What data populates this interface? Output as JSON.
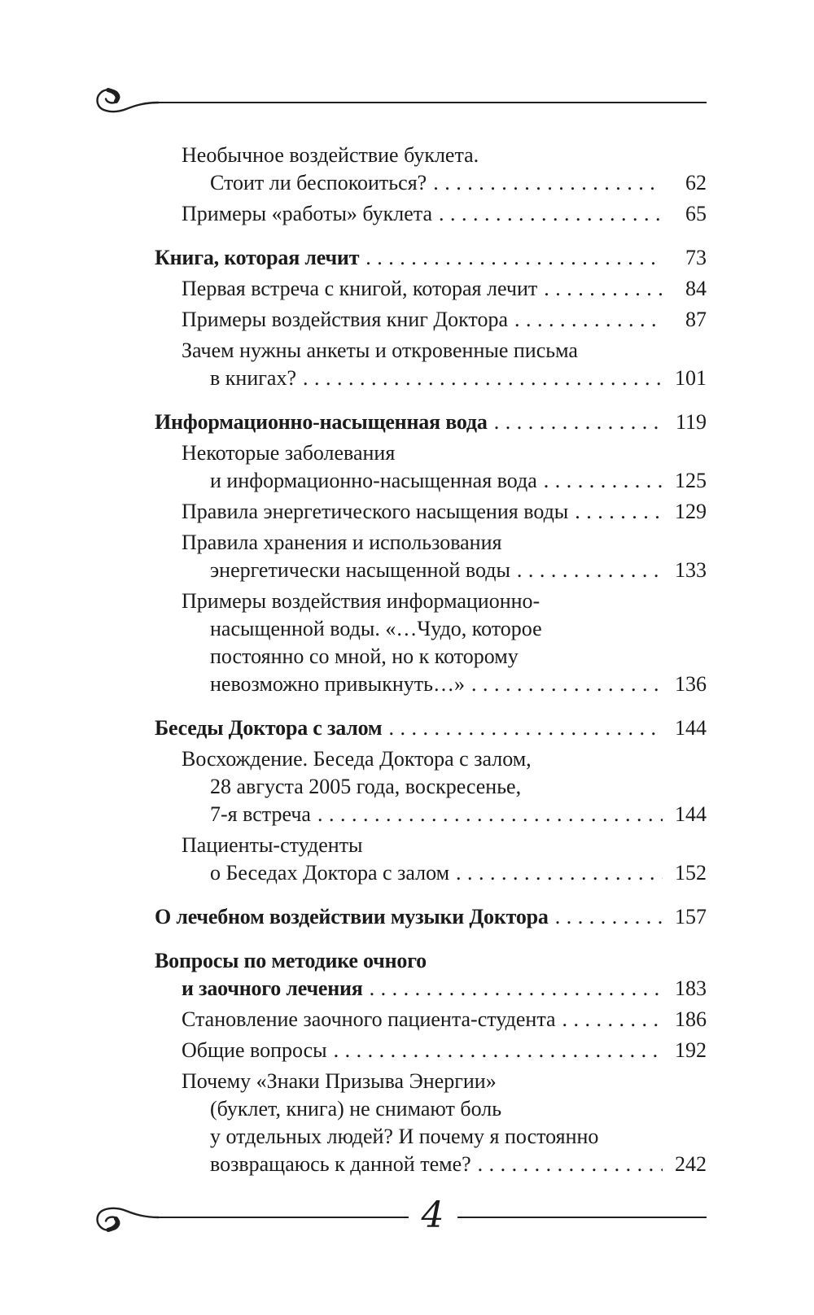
{
  "page": {
    "number": "4"
  },
  "icons": {
    "header_flourish": "swirl-rule-icon",
    "footer_flourish": "swirl-rule-icon"
  },
  "toc": {
    "entries": [
      {
        "bold": false,
        "gap": false,
        "indent": 1,
        "lines": [
          "Необычное воздействие буклета.",
          "Стоит ли беспокоиться?"
        ],
        "page": "62"
      },
      {
        "bold": false,
        "gap": false,
        "indent": 1,
        "lines": [
          "Примеры «работы» буклета"
        ],
        "page": "65"
      },
      {
        "bold": true,
        "gap": true,
        "indent": 0,
        "lines": [
          "Книга, которая лечит"
        ],
        "page": "73"
      },
      {
        "bold": false,
        "gap": false,
        "indent": 1,
        "lines": [
          "Первая встреча с книгой, которая лечит"
        ],
        "page": "84"
      },
      {
        "bold": false,
        "gap": false,
        "indent": 1,
        "lines": [
          "Примеры воздействия книг Доктора"
        ],
        "page": "87"
      },
      {
        "bold": false,
        "gap": false,
        "indent": 1,
        "lines": [
          "Зачем нужны анкеты и откровенные письма",
          "в книгах?"
        ],
        "page": "101"
      },
      {
        "bold": true,
        "gap": true,
        "indent": 0,
        "lines": [
          "Информационно-насыщенная вода"
        ],
        "page": "119"
      },
      {
        "bold": false,
        "gap": false,
        "indent": 1,
        "lines": [
          "Некоторые заболевания",
          "и информационно-насыщенная вода"
        ],
        "page": "125"
      },
      {
        "bold": false,
        "gap": false,
        "indent": 1,
        "lines": [
          "Правила энергетического насыщения воды"
        ],
        "page": "129"
      },
      {
        "bold": false,
        "gap": false,
        "indent": 1,
        "lines": [
          "Правила хранения и использования",
          "энергетически насыщенной воды"
        ],
        "page": "133"
      },
      {
        "bold": false,
        "gap": false,
        "indent": 1,
        "lines": [
          "Примеры воздействия информационно-",
          "насыщенной воды. «…Чудо, которое",
          "постоянно со мной, но к которому",
          "невозможно привыкнуть…»"
        ],
        "page": "136"
      },
      {
        "bold": true,
        "gap": true,
        "indent": 0,
        "lines": [
          "Беседы Доктора с залом"
        ],
        "page": "144"
      },
      {
        "bold": false,
        "gap": false,
        "indent": 1,
        "lines": [
          "Восхождение. Беседа Доктора с залом,",
          "28 августа 2005 года, воскресенье,",
          "7-я встреча"
        ],
        "page": "144"
      },
      {
        "bold": false,
        "gap": false,
        "indent": 1,
        "lines": [
          "Пациенты-студенты",
          "о Беседах Доктора с залом"
        ],
        "page": "152"
      },
      {
        "bold": true,
        "gap": true,
        "indent": 0,
        "lines": [
          "О лечебном воздействии музыки Доктора"
        ],
        "page": "157"
      },
      {
        "bold": true,
        "gap": true,
        "indent": 0,
        "lines": [
          "Вопросы по методике очного",
          "и заочного лечения"
        ],
        "page": "183"
      },
      {
        "bold": false,
        "gap": false,
        "indent": 1,
        "lines": [
          "Становление заочного пациента-студента"
        ],
        "page": "186"
      },
      {
        "bold": false,
        "gap": false,
        "indent": 1,
        "lines": [
          "Общие вопросы"
        ],
        "page": "192"
      },
      {
        "bold": false,
        "gap": false,
        "indent": 1,
        "lines": [
          "Почему «Знаки Призыва Энергии»",
          "(буклет, книга) не снимают боль",
          "у отдельных людей? И почему я постоянно",
          "возвращаюсь к данной теме?"
        ],
        "page": "242"
      }
    ]
  }
}
